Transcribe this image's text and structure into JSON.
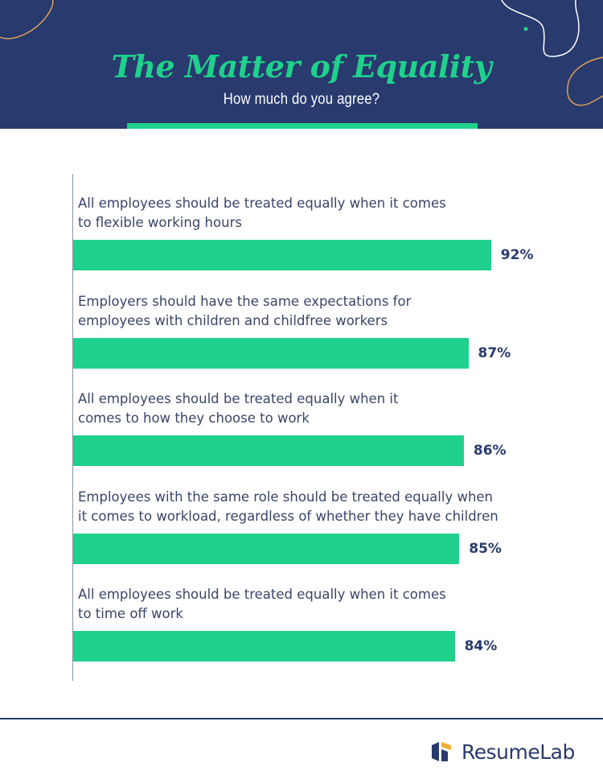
{
  "header": {
    "title": "The Matter of Equality",
    "subtitle": "How much do you agree?"
  },
  "colors": {
    "header_bg": "#283a6e",
    "accent": "#1fd18c",
    "bar": "#1fd18c",
    "text": "#3a4568",
    "value_text": "#283a6e",
    "deco_orange": "#d9a05b"
  },
  "chart_data": {
    "type": "bar",
    "orientation": "horizontal",
    "title": "The Matter of Equality",
    "subtitle": "How much do you agree?",
    "categories": [
      "All employees should be treated equally when it comes to flexible working hours",
      "Employers should have the same expectations for employees with children and childfree workers",
      "All employees should be treated equally when it comes to how they choose to work",
      "Employees with the same role should be treated equally when it comes to workload, regardless of whether they have children",
      "All employees should be treated equally when it comes to time off work"
    ],
    "label_lines": [
      [
        "All employees should be treated equally when it comes",
        "to flexible working hours"
      ],
      [
        "Employers should have the same expectations for",
        "employees with children and childfree workers"
      ],
      [
        "All employees should be treated equally when it",
        "comes to how they choose to work"
      ],
      [
        "Employees with the same role should be treated equally when",
        "it comes to workload, regardless of whether they have children"
      ],
      [
        "All employees should be treated equally when it comes",
        "to time off work"
      ]
    ],
    "values": [
      92,
      87,
      86,
      85,
      84
    ],
    "value_labels": [
      "92%",
      "87%",
      "86%",
      "85%",
      "84%"
    ],
    "unit": "%",
    "xlim": [
      0,
      100
    ],
    "grid": false,
    "legend": "none"
  },
  "footer": {
    "logo_text": "ResumeLab",
    "logo_icon": "resumelab-logo-icon"
  }
}
